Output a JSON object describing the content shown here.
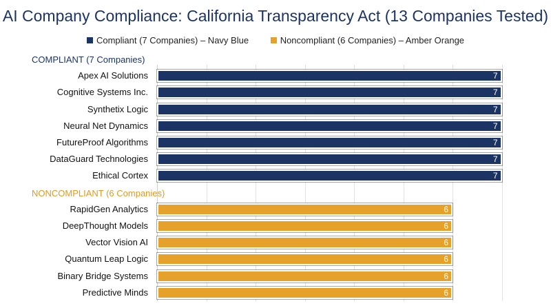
{
  "chart_data": {
    "type": "bar",
    "orientation": "horizontal",
    "title": "AI Company Compliance: California Transparency Act (13 Companies Tested)",
    "legend": [
      {
        "label": "Compliant (7 Companies) – Navy Blue",
        "color": "#1c3464"
      },
      {
        "label": "Noncompliant (6 Companies) – Amber Orange",
        "color": "#e5a12a"
      }
    ],
    "groups": [
      {
        "label": "COMPLIANT (7 Companies)",
        "color": "#1c3464",
        "categories": [
          "Apex AI Solutions",
          "Cognitive Systems Inc.",
          "Synthetix Logic",
          "Neural Net Dynamics",
          "FutureProof Algorithms",
          "DataGuard Technologies",
          "Ethical Cortex"
        ],
        "values": [
          7,
          7,
          7,
          7,
          7,
          7,
          7
        ]
      },
      {
        "label": "NONCOMPLIANT (6 Companies)",
        "color": "#e5a12a",
        "categories": [
          "RapidGen Analytics",
          "DeepThought Models",
          "Vector Vision AI",
          "Quantum Leap Logic",
          "Binary Bridge Systems",
          "Predictive Minds"
        ],
        "values": [
          6,
          6,
          6,
          6,
          6,
          6
        ]
      }
    ],
    "xlim": [
      0,
      8
    ],
    "grid": true,
    "legend_position": "top"
  }
}
